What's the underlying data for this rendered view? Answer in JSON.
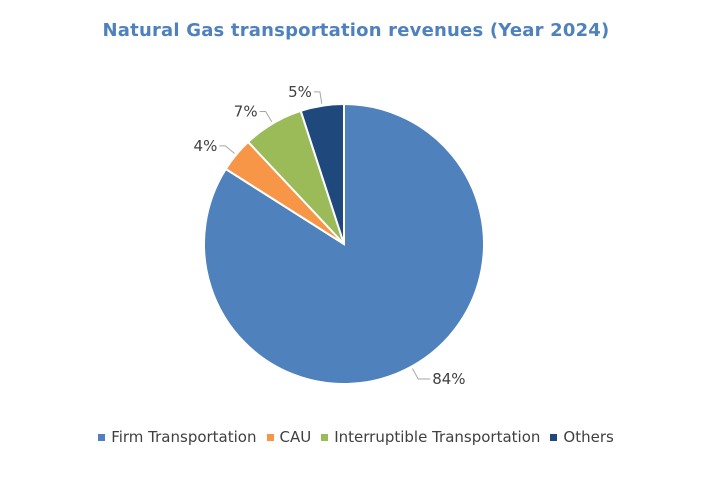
{
  "chart_data": {
    "type": "pie",
    "title": "Natural Gas transportation revenues (Year 2024)",
    "title_color": "#4f81bd",
    "categories": [
      "Firm Transportation",
      "CAU",
      "Interruptible Transportation",
      "Others"
    ],
    "values": [
      84,
      4,
      7,
      5
    ],
    "data_labels": [
      "84%",
      "4%",
      "7%",
      "5%"
    ],
    "colors": [
      "#4f81bd",
      "#f79646",
      "#9bbb59",
      "#1f497d"
    ],
    "legend_position": "bottom",
    "start_angle_deg": 0,
    "direction": "clockwise"
  }
}
